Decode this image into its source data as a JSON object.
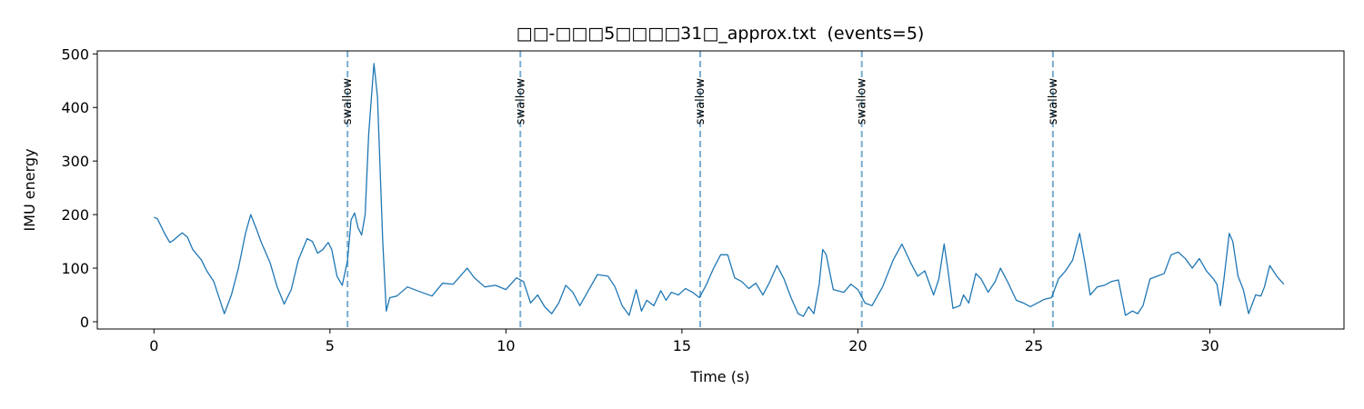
{
  "chart_data": {
    "type": "line",
    "title": "□□-□□□5□□□□31□_approx.txt  (events=5)",
    "xlabel": "Time (s)",
    "ylabel": "IMU energy",
    "x": [
      0,
      0.1,
      0.3,
      0.45,
      0.55,
      0.8,
      0.95,
      1.1,
      1.35,
      1.5,
      1.7,
      1.85,
      2.0,
      2.2,
      2.4,
      2.6,
      2.75,
      2.9,
      3.05,
      3.3,
      3.5,
      3.7,
      3.9,
      4.1,
      4.35,
      4.5,
      4.65,
      4.8,
      4.95,
      5.05,
      5.2,
      5.35,
      5.5,
      5.6,
      5.7,
      5.8,
      5.9,
      6.0,
      6.1,
      6.25,
      6.35,
      6.5,
      6.6,
      6.7,
      6.9,
      7.2,
      7.6,
      7.9,
      8.2,
      8.5,
      8.7,
      8.9,
      9.1,
      9.4,
      9.7,
      10.0,
      10.3,
      10.5,
      10.7,
      10.9,
      11.1,
      11.3,
      11.5,
      11.7,
      11.9,
      12.1,
      12.4,
      12.6,
      12.9,
      13.1,
      13.3,
      13.5,
      13.7,
      13.85,
      14.0,
      14.2,
      14.4,
      14.55,
      14.7,
      14.9,
      15.1,
      15.3,
      15.5,
      15.7,
      15.9,
      16.1,
      16.3,
      16.5,
      16.7,
      16.9,
      17.1,
      17.3,
      17.5,
      17.7,
      17.9,
      18.1,
      18.3,
      18.45,
      18.6,
      18.75,
      18.9,
      19.0,
      19.1,
      19.3,
      19.6,
      19.8,
      20.0,
      20.2,
      20.4,
      20.7,
      21.0,
      21.25,
      21.5,
      21.7,
      21.9,
      22.15,
      22.3,
      22.45,
      22.55,
      22.7,
      22.9,
      23.0,
      23.15,
      23.35,
      23.5,
      23.7,
      23.9,
      24.05,
      24.25,
      24.5,
      24.7,
      24.9,
      25.1,
      25.3,
      25.5,
      25.7,
      25.9,
      26.1,
      26.3,
      26.45,
      26.6,
      26.8,
      27.0,
      27.2,
      27.4,
      27.6,
      27.8,
      27.95,
      28.1,
      28.3,
      28.5,
      28.7,
      28.9,
      29.1,
      29.3,
      29.5,
      29.7,
      29.9,
      30.1,
      30.2,
      30.3,
      30.4,
      30.55,
      30.65,
      30.8,
      30.95,
      31.1,
      31.3,
      31.45,
      31.55,
      31.7,
      31.9,
      32.1
    ],
    "series": [
      {
        "color": "#1f77b4",
        "values": [
          195,
          192,
          165,
          148,
          152,
          166,
          158,
          135,
          115,
          95,
          75,
          45,
          15,
          50,
          100,
          165,
          200,
          175,
          148,
          110,
          65,
          33,
          60,
          115,
          155,
          150,
          128,
          135,
          148,
          135,
          85,
          68,
          115,
          190,
          203,
          175,
          162,
          200,
          350,
          482,
          420,
          150,
          20,
          45,
          48,
          65,
          55,
          48,
          72,
          70,
          85,
          100,
          82,
          65,
          68,
          60,
          82,
          75,
          35,
          50,
          28,
          15,
          35,
          68,
          55,
          30,
          65,
          88,
          85,
          65,
          30,
          12,
          60,
          20,
          40,
          30,
          58,
          40,
          55,
          50,
          62,
          55,
          45,
          70,
          100,
          125,
          125,
          82,
          75,
          62,
          72,
          50,
          75,
          105,
          80,
          45,
          15,
          10,
          28,
          15,
          70,
          135,
          125,
          60,
          55,
          70,
          60,
          35,
          30,
          65,
          115,
          145,
          110,
          85,
          95,
          50,
          80,
          145,
          100,
          25,
          30,
          50,
          35,
          90,
          80,
          55,
          75,
          100,
          75,
          40,
          35,
          28,
          35,
          42,
          45,
          80,
          95,
          115,
          165,
          110,
          50,
          65,
          68,
          75,
          78,
          12,
          20,
          15,
          30,
          80,
          85,
          90,
          125,
          130,
          118,
          100,
          118,
          95,
          80,
          70,
          30,
          80,
          165,
          150,
          85,
          60,
          15,
          50,
          48,
          65,
          105,
          85,
          70
        ]
      }
    ],
    "event_lines": {
      "x": [
        5.5,
        10.41,
        15.52,
        20.11,
        25.54
      ],
      "label": "swallow",
      "color": "#1f77b4"
    },
    "xlim": [
      -1.61,
      33.81
    ],
    "ylim": [
      -13.6,
      505.6
    ],
    "xticks": [
      0,
      5,
      10,
      15,
      20,
      25,
      30
    ],
    "yticks": [
      0,
      100,
      200,
      300,
      400,
      500
    ]
  }
}
